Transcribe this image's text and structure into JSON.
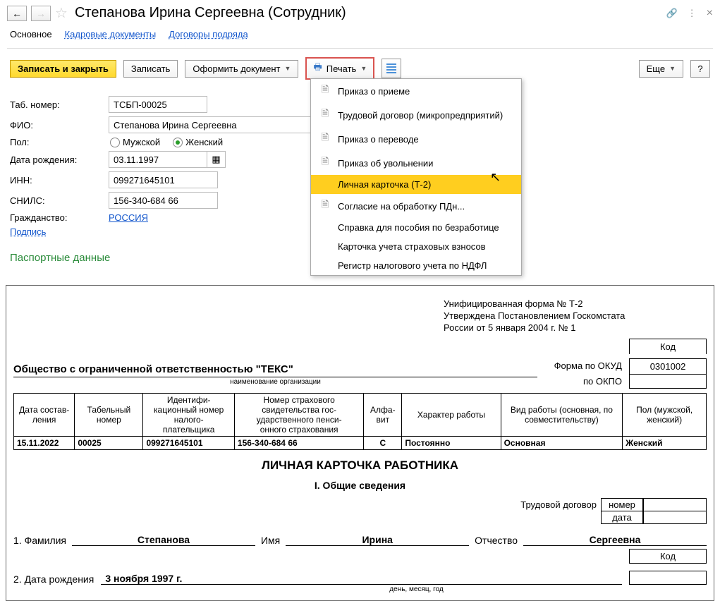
{
  "header": {
    "title": "Степанова Ирина Сергеевна (Сотрудник)"
  },
  "tabs": {
    "main": "Основное",
    "hr_docs": "Кадровые документы",
    "contracts": "Договоры подряда"
  },
  "toolbar": {
    "save_close": "Записать и закрыть",
    "save": "Записать",
    "make_doc": "Оформить документ",
    "print": "Печать",
    "more": "Еще",
    "help": "?"
  },
  "print_menu": {
    "items": [
      {
        "label": "Приказ о приеме",
        "icon": true
      },
      {
        "label": "Трудовой договор (микропредприятий)",
        "icon": true
      },
      {
        "label": "Приказ о переводе",
        "icon": true
      },
      {
        "label": "Приказ об увольнении",
        "icon": true
      },
      {
        "label": "Личная карточка (Т-2)",
        "icon": false,
        "selected": true
      },
      {
        "label": "Согласие на обработку ПДн...",
        "icon": true
      },
      {
        "label": "Справка для пособия по безработице",
        "icon": false
      },
      {
        "label": "Карточка учета страховых взносов",
        "icon": false
      },
      {
        "label": "Регистр налогового учета по НДФЛ",
        "icon": false
      }
    ]
  },
  "form": {
    "tabno_label": "Таб. номер:",
    "tabno": "ТСБП-00025",
    "fio_label": "ФИО:",
    "fio": "Степанова Ирина Сергеевна",
    "sex_label": "Пол:",
    "sex_m": "Мужской",
    "sex_f": "Женский",
    "dob_label": "Дата рождения:",
    "dob": "03.11.1997",
    "inn_label": "ИНН:",
    "inn": "099271645101",
    "snils_label": "СНИЛС:",
    "snils": "156-340-684 66",
    "citizen_label": "Гражданство:",
    "citizen": "РОССИЯ",
    "sign": "Подпись"
  },
  "section": {
    "passport": "Паспортные данные"
  },
  "doc": {
    "form_line1": "Унифицированная форма № Т-2",
    "form_line2": "Утверждена Постановлением Госкомстата",
    "form_line3": "России от 5 января 2004 г. № 1",
    "kod_label": "Код",
    "okud_label": "Форма по ОКУД",
    "okud": "0301002",
    "okpo_label": "по ОКПО",
    "okpo": "",
    "org": "Общество с ограниченной ответственностью \"ТЕКС\"",
    "org_sub": "наименование организации",
    "table": {
      "headers": [
        "Дата состав-\nления",
        "Табельный номер",
        "Идентифи-\nкационный номер налого-\nплательщика",
        "Номер страхового свидетельства гос-\nударственного пенси-\nонного страхования",
        "Алфа-\nвит",
        "Характер работы",
        "Вид работы (основная, по совместительству)",
        "Пол (мужской, женский)"
      ],
      "row": [
        "15.11.2022",
        "00025",
        "099271645101",
        "156-340-684 66",
        "С",
        "Постоянно",
        "Основная",
        "Женский"
      ]
    },
    "title": "ЛИЧНАЯ КАРТОЧКА РАБОТНИКА",
    "subtitle": "I. Общие сведения",
    "contract_label": "Трудовой договор",
    "contract_num_label": "номер",
    "contract_date_label": "дата",
    "fam_num": "1. Фамилия",
    "fam": "Степанова",
    "name_lbl": "Имя",
    "name": "Ирина",
    "patr_lbl": "Отчество",
    "patr": "Сергеевна",
    "kod2_label": "Код",
    "dob_num": "2. Дата рождения",
    "dob_val": "3 ноября 1997 г.",
    "dob_sub": "день, месяц, год"
  }
}
